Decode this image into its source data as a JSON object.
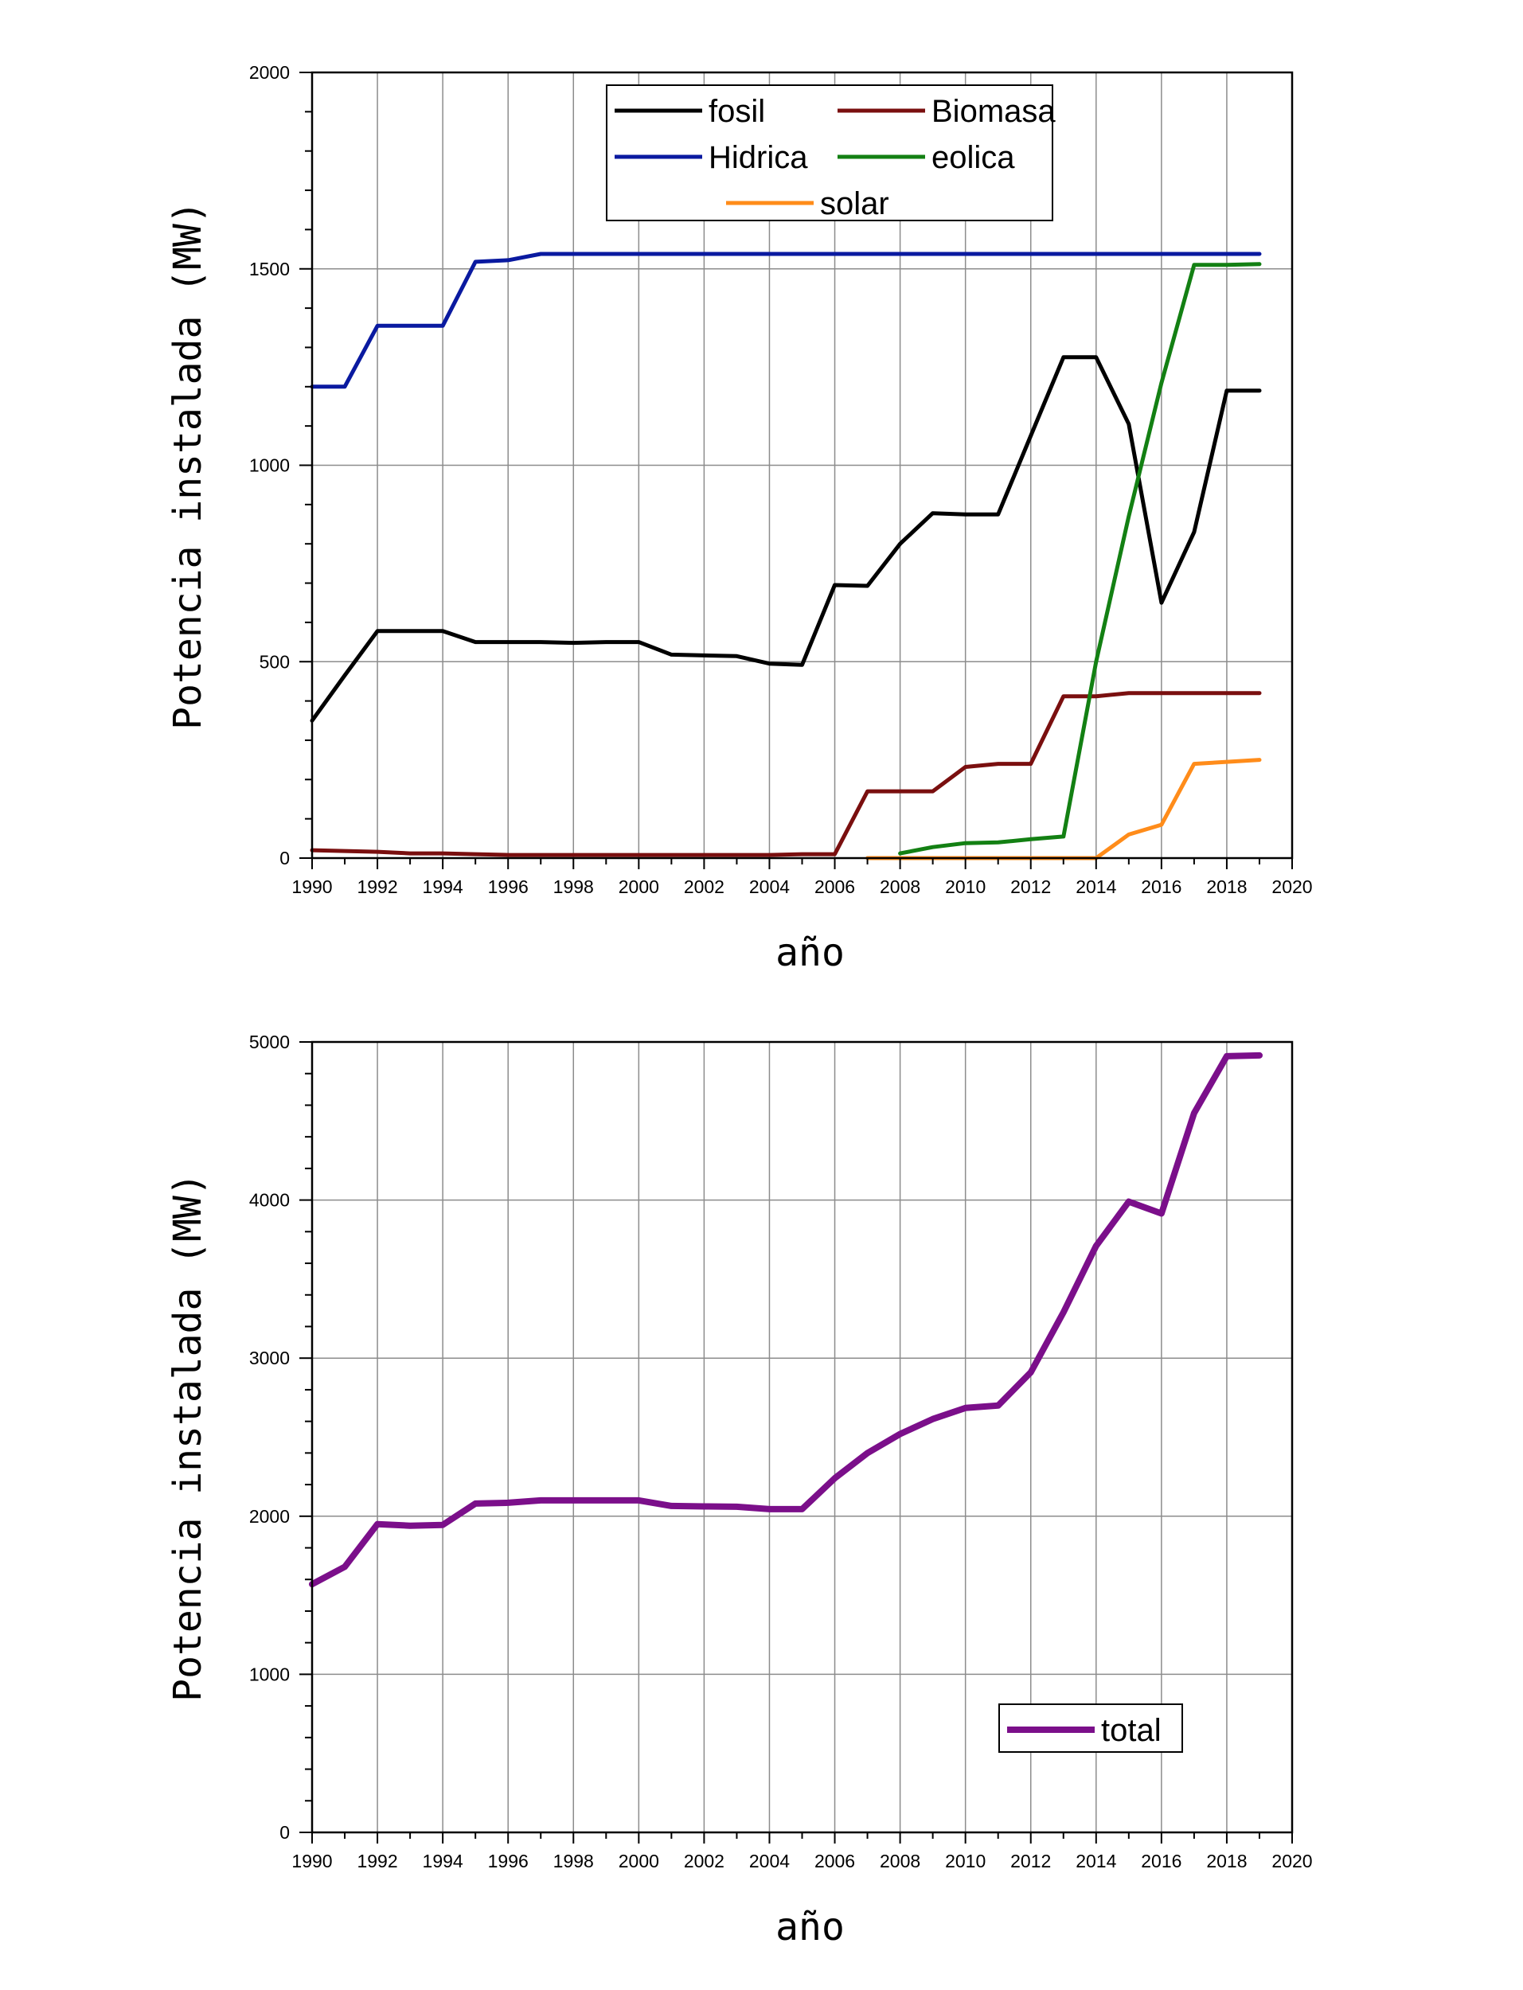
{
  "chart_data": [
    {
      "type": "line",
      "title": "",
      "xlabel": "año",
      "ylabel": "Potencia instalada (MW)",
      "xlim": [
        1990,
        2020
      ],
      "ylim": [
        0,
        2000
      ],
      "x_ticks": [
        1990,
        1992,
        1994,
        1996,
        1998,
        2000,
        2002,
        2004,
        2006,
        2008,
        2010,
        2012,
        2014,
        2016,
        2018,
        2020
      ],
      "y_ticks": [
        0,
        500,
        1000,
        1500,
        2000
      ],
      "grid": true,
      "legend_position": "top-center",
      "series": [
        {
          "name": "fosil",
          "color": "#000000",
          "x": [
            1990,
            1991,
            1992,
            1993,
            1994,
            1995,
            1996,
            1997,
            1998,
            1999,
            2000,
            2001,
            2002,
            2003,
            2004,
            2005,
            2006,
            2007,
            2008,
            2009,
            2010,
            2011,
            2012,
            2013,
            2014,
            2015,
            2016,
            2017,
            2018,
            2019
          ],
          "y": [
            350,
            465,
            578,
            578,
            578,
            550,
            550,
            550,
            548,
            550,
            550,
            518,
            516,
            514,
            495,
            492,
            695,
            693,
            800,
            878,
            875,
            875,
            1075,
            1275,
            1275,
            1105,
            650,
            830,
            1190,
            1190
          ]
        },
        {
          "name": "Biomasa",
          "color": "#7a0f0f",
          "x": [
            1990,
            1991,
            1992,
            1993,
            1994,
            1995,
            1996,
            1997,
            1998,
            1999,
            2000,
            2001,
            2002,
            2003,
            2004,
            2005,
            2006,
            2007,
            2008,
            2009,
            2010,
            2011,
            2012,
            2013,
            2014,
            2015,
            2016,
            2017,
            2018,
            2019
          ],
          "y": [
            20,
            18,
            16,
            12,
            12,
            10,
            8,
            8,
            8,
            8,
            8,
            8,
            8,
            8,
            8,
            10,
            10,
            170,
            170,
            170,
            232,
            240,
            240,
            412,
            412,
            420,
            420,
            420,
            420,
            420
          ]
        },
        {
          "name": "Hidrica",
          "color": "#0a1aa0",
          "x": [
            1990,
            1991,
            1992,
            1993,
            1994,
            1995,
            1996,
            1997,
            1998,
            1999,
            2000,
            2001,
            2002,
            2003,
            2004,
            2005,
            2006,
            2007,
            2008,
            2009,
            2010,
            2011,
            2012,
            2013,
            2014,
            2015,
            2016,
            2017,
            2018,
            2019
          ],
          "y": [
            1200,
            1200,
            1355,
            1355,
            1355,
            1518,
            1522,
            1538,
            1538,
            1538,
            1538,
            1538,
            1538,
            1538,
            1538,
            1538,
            1538,
            1538,
            1538,
            1538,
            1538,
            1538,
            1538,
            1538,
            1538,
            1538,
            1538,
            1538,
            1538,
            1538
          ]
        },
        {
          "name": "eolica",
          "color": "#138013",
          "x": [
            2008,
            2009,
            2010,
            2011,
            2012,
            2013,
            2014,
            2015,
            2016,
            2017,
            2018,
            2019
          ],
          "y": [
            12,
            28,
            38,
            40,
            48,
            55,
            500,
            870,
            1210,
            1510,
            1510,
            1512
          ]
        },
        {
          "name": "solar",
          "color": "#ff8c1a",
          "x": [
            2007,
            2008,
            2009,
            2010,
            2011,
            2012,
            2013,
            2014,
            2015,
            2016,
            2017,
            2018,
            2019
          ],
          "y": [
            0,
            0,
            0,
            0,
            0,
            0,
            0,
            0,
            60,
            85,
            240,
            245,
            250
          ]
        }
      ]
    },
    {
      "type": "line",
      "title": "",
      "xlabel": "año",
      "ylabel": "Potencia instalada (MW)",
      "xlim": [
        1990,
        2020
      ],
      "ylim": [
        0,
        5000
      ],
      "x_ticks": [
        1990,
        1992,
        1994,
        1996,
        1998,
        2000,
        2002,
        2004,
        2006,
        2008,
        2010,
        2012,
        2014,
        2016,
        2018,
        2020
      ],
      "y_ticks": [
        0,
        1000,
        2000,
        3000,
        4000,
        5000
      ],
      "grid": true,
      "legend_position": "bottom-right",
      "series": [
        {
          "name": "total",
          "color": "#7b0f8a",
          "x": [
            1990,
            1991,
            1992,
            1993,
            1994,
            1995,
            1996,
            1997,
            1998,
            1999,
            2000,
            2001,
            2002,
            2003,
            2004,
            2005,
            2006,
            2007,
            2008,
            2009,
            2010,
            2011,
            2012,
            2013,
            2014,
            2015,
            2016,
            2017,
            2018,
            2019
          ],
          "y": [
            1570,
            1680,
            1950,
            1940,
            1945,
            2080,
            2085,
            2100,
            2100,
            2100,
            2100,
            2065,
            2062,
            2060,
            2045,
            2045,
            2240,
            2400,
            2520,
            2615,
            2685,
            2700,
            2910,
            3290,
            3710,
            3990,
            3915,
            4550,
            4910,
            4915
          ]
        }
      ]
    }
  ]
}
